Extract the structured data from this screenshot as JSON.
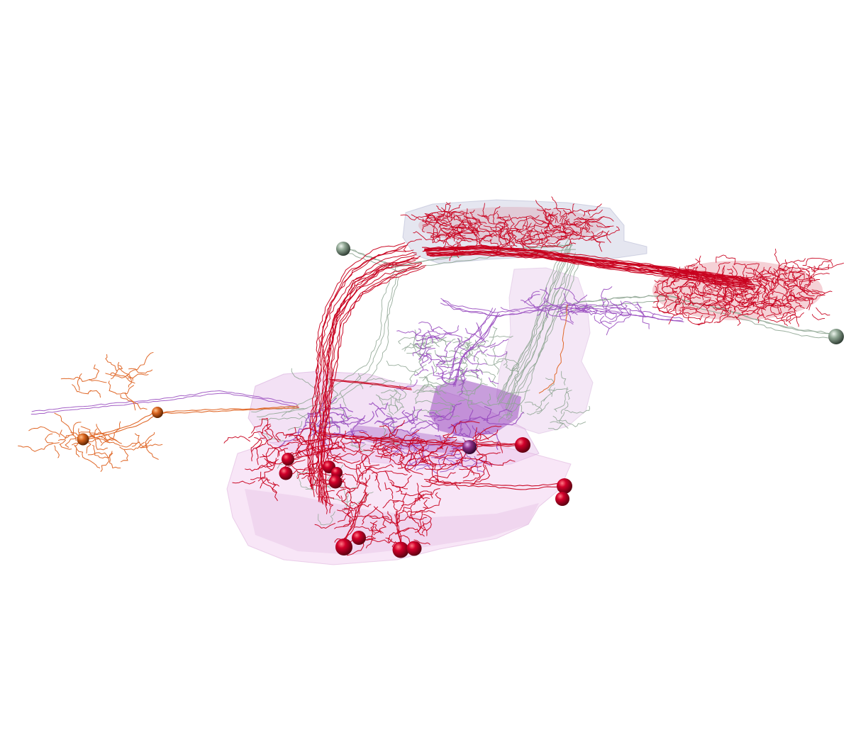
{
  "scene": {
    "background": "#ffffff",
    "regions": [
      {
        "name": "upper-neuropil",
        "color": "#c9cbe0"
      },
      {
        "name": "right-lobe",
        "color": "#e6c9ea"
      },
      {
        "name": "central-body",
        "color": "#e7c2ea"
      },
      {
        "name": "lower-neuropil",
        "color": "#efc2ec"
      }
    ],
    "neuron_colors": {
      "red": "#c8001e",
      "violet": "#9a4fc0",
      "sage": "#8ea592",
      "orange": "#e0692a"
    },
    "soma_counts": {
      "red": 15,
      "sage": 2,
      "orange": 2,
      "violet": 1
    }
  }
}
